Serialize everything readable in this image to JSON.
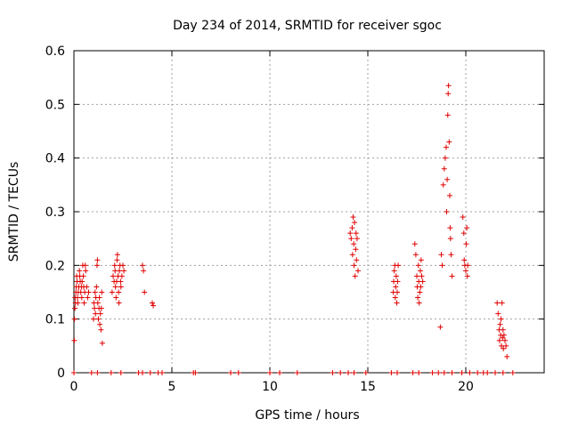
{
  "chart_data": {
    "type": "scatter",
    "title": "Day 234 of 2014, SRMTID for receiver sgoc",
    "xlabel": "GPS time / hours",
    "ylabel": "SRMTID / TECUs",
    "xlim": [
      0,
      24
    ],
    "ylim": [
      0,
      0.6
    ],
    "xticks": [
      0,
      5,
      10,
      15,
      20
    ],
    "xtick_labels": [
      "0",
      "5",
      "10",
      "15",
      "20"
    ],
    "yticks": [
      0,
      0.1,
      0.2,
      0.3,
      0.4,
      0.5,
      0.6
    ],
    "ytick_labels": [
      "0",
      "0.1",
      "0.2",
      "0.3",
      "0.4",
      "0.5",
      "0.6"
    ],
    "grid": true,
    "marker": "plus",
    "color": "#e00000",
    "series": [
      {
        "name": "SRMTID",
        "x": [
          0.02,
          0.03,
          0.05,
          0.06,
          0.08,
          0.1,
          0.12,
          0.14,
          0.16,
          0.18,
          0.2,
          0.22,
          0.25,
          0.28,
          0.3,
          0.32,
          0.35,
          0.38,
          0.4,
          0.42,
          0.45,
          0.48,
          0.5,
          0.52,
          0.55,
          0.58,
          0.6,
          0.65,
          0.7,
          0.75,
          1.0,
          1.02,
          1.05,
          1.08,
          1.1,
          1.12,
          1.15,
          1.18,
          1.2,
          1.22,
          1.25,
          1.28,
          1.3,
          1.32,
          1.35,
          1.38,
          1.4,
          1.42,
          1.45,
          1.95,
          2.0,
          2.05,
          2.08,
          2.1,
          2.12,
          2.15,
          2.18,
          2.2,
          2.22,
          2.25,
          2.28,
          2.3,
          2.32,
          2.35,
          2.38,
          2.4,
          2.45,
          2.5,
          2.55,
          3.5,
          3.55,
          3.6,
          4.0,
          4.05,
          14.1,
          14.15,
          14.2,
          14.22,
          14.25,
          14.28,
          14.3,
          14.32,
          14.35,
          14.38,
          14.4,
          14.42,
          14.45,
          14.5,
          16.3,
          16.32,
          16.35,
          16.38,
          16.4,
          16.42,
          16.45,
          16.48,
          16.5,
          16.52,
          16.55,
          17.4,
          17.45,
          17.5,
          17.52,
          17.55,
          17.58,
          17.6,
          17.62,
          17.65,
          17.68,
          17.7,
          17.72,
          17.75,
          17.8,
          18.7,
          18.75,
          18.8,
          18.85,
          18.9,
          18.95,
          19.0,
          19.02,
          19.05,
          19.08,
          19.1,
          19.12,
          19.15,
          19.18,
          19.2,
          19.22,
          19.25,
          19.3,
          19.85,
          19.9,
          19.92,
          19.95,
          20.0,
          20.02,
          20.05,
          20.08,
          20.1,
          21.6,
          21.65,
          21.7,
          21.72,
          21.75,
          21.78,
          21.8,
          21.82,
          21.85,
          21.88,
          21.9,
          21.92,
          21.95,
          22.0,
          22.05,
          22.1,
          0.0,
          0.9,
          1.2,
          1.9,
          2.4,
          3.3,
          3.5,
          3.9,
          4.3,
          4.5,
          6.1,
          6.2,
          8.0,
          8.4,
          10.0,
          10.5,
          11.4,
          13.2,
          13.6,
          14.0,
          14.3,
          14.9,
          16.2,
          16.5,
          17.3,
          17.6,
          18.3,
          18.6,
          18.9,
          19.3,
          19.8,
          20.2,
          20.6,
          20.9,
          21.1,
          21.5,
          21.9,
          22.4
        ],
        "y": [
          0.06,
          0.1,
          0.12,
          0.14,
          0.13,
          0.15,
          0.16,
          0.18,
          0.17,
          0.14,
          0.13,
          0.15,
          0.16,
          0.19,
          0.18,
          0.17,
          0.15,
          0.16,
          0.14,
          0.17,
          0.2,
          0.18,
          0.16,
          0.13,
          0.15,
          0.2,
          0.19,
          0.16,
          0.14,
          0.15,
          0.1,
          0.13,
          0.12,
          0.15,
          0.11,
          0.14,
          0.16,
          0.2,
          0.21,
          0.13,
          0.1,
          0.12,
          0.14,
          0.09,
          0.11,
          0.08,
          0.12,
          0.15,
          0.055,
          0.15,
          0.18,
          0.17,
          0.2,
          0.19,
          0.16,
          0.14,
          0.17,
          0.21,
          0.22,
          0.18,
          0.15,
          0.13,
          0.19,
          0.2,
          0.17,
          0.16,
          0.18,
          0.2,
          0.19,
          0.2,
          0.19,
          0.15,
          0.13,
          0.125,
          0.26,
          0.25,
          0.27,
          0.22,
          0.29,
          0.24,
          0.2,
          0.28,
          0.18,
          0.23,
          0.26,
          0.21,
          0.25,
          0.19,
          0.15,
          0.17,
          0.19,
          0.2,
          0.14,
          0.16,
          0.18,
          0.13,
          0.15,
          0.17,
          0.2,
          0.24,
          0.22,
          0.18,
          0.16,
          0.14,
          0.2,
          0.17,
          0.13,
          0.15,
          0.19,
          0.16,
          0.21,
          0.18,
          0.17,
          0.085,
          0.22,
          0.2,
          0.35,
          0.38,
          0.4,
          0.42,
          0.3,
          0.36,
          0.48,
          0.52,
          0.535,
          0.43,
          0.33,
          0.27,
          0.25,
          0.22,
          0.18,
          0.29,
          0.26,
          0.21,
          0.2,
          0.19,
          0.24,
          0.27,
          0.18,
          0.2,
          0.13,
          0.11,
          0.08,
          0.06,
          0.09,
          0.07,
          0.1,
          0.05,
          0.13,
          0.065,
          0.08,
          0.045,
          0.07,
          0.06,
          0.05,
          0.03,
          0,
          0,
          0,
          0,
          0,
          0,
          0,
          0,
          0,
          0,
          0,
          0,
          0,
          0,
          0,
          0,
          0,
          0,
          0,
          0,
          0,
          0,
          0,
          0,
          0,
          0,
          0,
          0,
          0,
          0,
          0,
          0,
          0,
          0,
          0,
          0,
          0,
          0
        ]
      }
    ]
  }
}
